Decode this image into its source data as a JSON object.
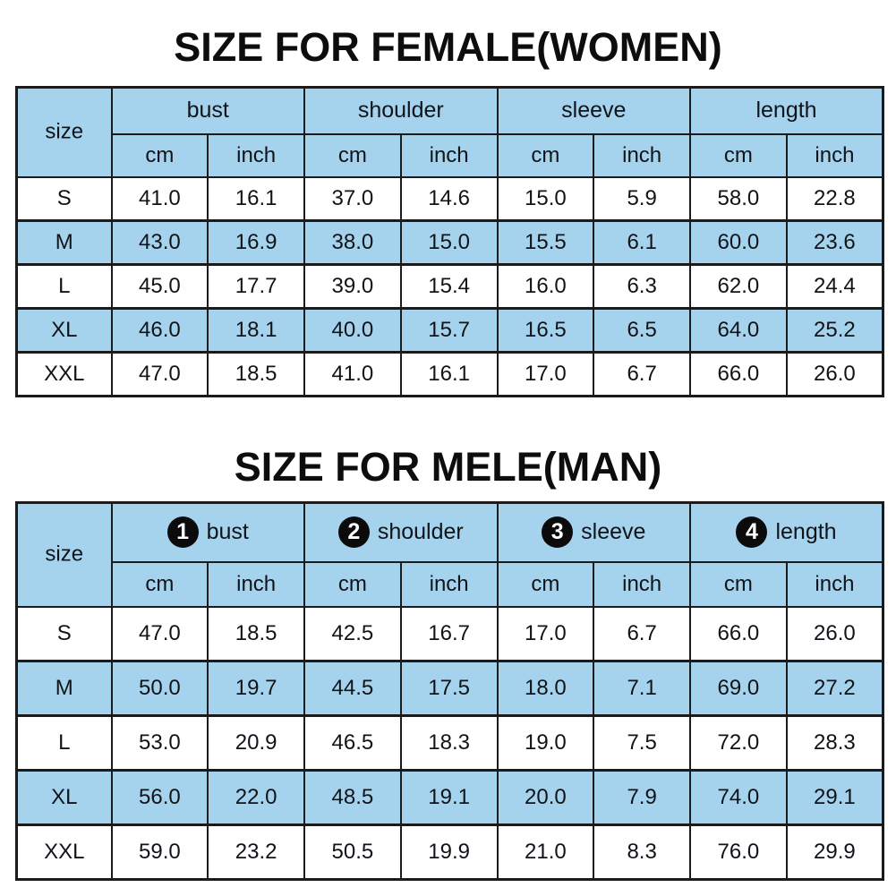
{
  "colors": {
    "highlight_blue": "#a5d3ee",
    "border": "#1b1b1b",
    "title_text": "#0d0d0d",
    "circle_bg": "#0b0b0b",
    "circle_text": "#ffffff",
    "page_background": "#ffffff"
  },
  "female_table": {
    "title": "SIZE FOR FEMALE(WOMEN)",
    "corner_label": "size",
    "groups": [
      {
        "label": "bust"
      },
      {
        "label": "shoulder"
      },
      {
        "label": "sleeve"
      },
      {
        "label": "length"
      }
    ],
    "units": [
      "cm",
      "inch",
      "cm",
      "inch",
      "cm",
      "inch",
      "cm",
      "inch"
    ],
    "rows": [
      {
        "size": "S",
        "values": [
          "41.0",
          "16.1",
          "37.0",
          "14.6",
          "15.0",
          "5.9",
          "58.0",
          "22.8"
        ]
      },
      {
        "size": "M",
        "values": [
          "43.0",
          "16.9",
          "38.0",
          "15.0",
          "15.5",
          "6.1",
          "60.0",
          "23.6"
        ]
      },
      {
        "size": "L",
        "values": [
          "45.0",
          "17.7",
          "39.0",
          "15.4",
          "16.0",
          "6.3",
          "62.0",
          "24.4"
        ]
      },
      {
        "size": "XL",
        "values": [
          "46.0",
          "18.1",
          "40.0",
          "15.7",
          "16.5",
          "6.5",
          "64.0",
          "25.2"
        ]
      },
      {
        "size": "XXL",
        "values": [
          "47.0",
          "18.5",
          "41.0",
          "16.1",
          "17.0",
          "6.7",
          "66.0",
          "26.0"
        ]
      }
    ]
  },
  "male_table": {
    "title": "SIZE FOR MELE(MAN)",
    "corner_label": "size",
    "groups": [
      {
        "num": "1",
        "label": "bust"
      },
      {
        "num": "2",
        "label": "shoulder"
      },
      {
        "num": "3",
        "label": "sleeve"
      },
      {
        "num": "4",
        "label": "length"
      }
    ],
    "units": [
      "cm",
      "inch",
      "cm",
      "inch",
      "cm",
      "inch",
      "cm",
      "inch"
    ],
    "rows": [
      {
        "size": "S",
        "values": [
          "47.0",
          "18.5",
          "42.5",
          "16.7",
          "17.0",
          "6.7",
          "66.0",
          "26.0"
        ]
      },
      {
        "size": "M",
        "values": [
          "50.0",
          "19.7",
          "44.5",
          "17.5",
          "18.0",
          "7.1",
          "69.0",
          "27.2"
        ]
      },
      {
        "size": "L",
        "values": [
          "53.0",
          "20.9",
          "46.5",
          "18.3",
          "19.0",
          "7.5",
          "72.0",
          "28.3"
        ]
      },
      {
        "size": "XL",
        "values": [
          "56.0",
          "22.0",
          "48.5",
          "19.1",
          "20.0",
          "7.9",
          "74.0",
          "29.1"
        ]
      },
      {
        "size": "XXL",
        "values": [
          "59.0",
          "23.2",
          "50.5",
          "19.9",
          "21.0",
          "8.3",
          "76.0",
          "29.9"
        ]
      }
    ]
  }
}
